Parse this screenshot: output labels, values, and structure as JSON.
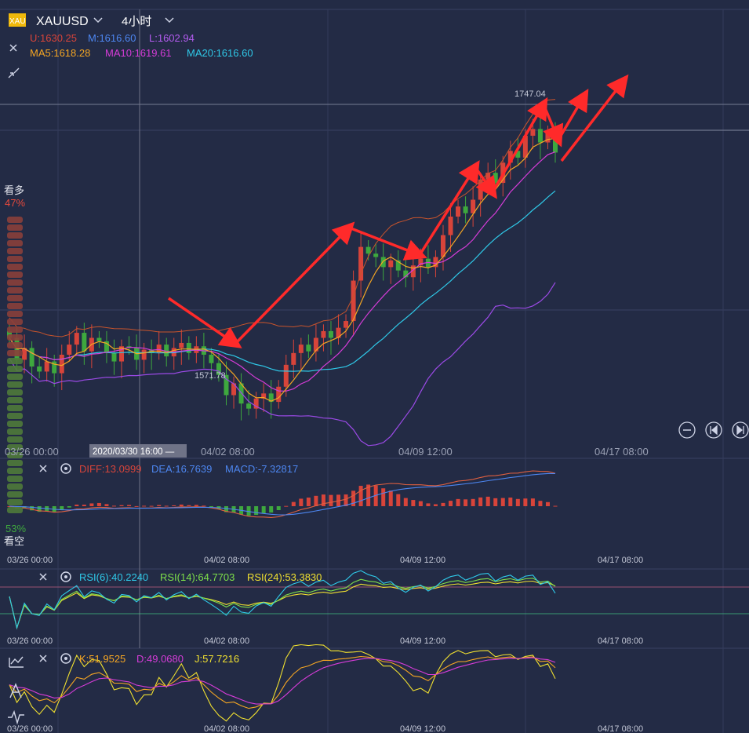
{
  "header": {
    "symbol": "XAUUSD",
    "logo_text": "XAU",
    "period": "4小时",
    "boll": {
      "u": "U:1630.25",
      "m": "M:1616.60",
      "l": "L:1602.94"
    },
    "ma": {
      "ma5": "MA5:1618.28",
      "ma10": "MA10:1619.61",
      "ma20": "MA20:1616.60"
    }
  },
  "sentiment": {
    "bull_label": "看多",
    "bull_pct": "47%",
    "bear_pct": "53%",
    "bear_label": "看空",
    "bull_fraction": 0.47
  },
  "cursor": {
    "time_label": "2020/03/30 16:00 —"
  },
  "markers": {
    "high": "1747.04",
    "low": "1571.78"
  },
  "x_axis_labels": [
    "03/26 00:00",
    "04/02 08:00",
    "04/09 12:00",
    "04/17 08:00"
  ],
  "indicators": {
    "macd": {
      "diff": "DIFF:13.0999",
      "dea": "DEA:16.7639",
      "macd": "MACD:-7.32817"
    },
    "rsi": {
      "rsi6": "RSI(6):40.2240",
      "rsi14": "RSI(14):64.7703",
      "rsi24": "RSI(24):53.3830"
    },
    "kdj": {
      "k": "K:51.9525",
      "d": "D:49.0680",
      "j": "J:57.7216"
    }
  },
  "colors": {
    "background": "#232b45",
    "up": "#d8443a",
    "down": "#3ea83e",
    "ma5": "#f5a623",
    "ma10": "#d63cd8",
    "ma20": "#2fc9e8",
    "boll_u": "#c8542c",
    "boll_l": "#9b4ae6",
    "arrow": "#ff2a2a"
  },
  "icons": [
    "close-icon",
    "collapse-icon",
    "settings-icon",
    "zoom-out-icon",
    "step-back-icon",
    "step-forward-icon",
    "chart-type-icon",
    "drawing-icon",
    "indicator-icon"
  ],
  "chart_data": {
    "type": "candlestick",
    "symbol": "XAUUSD",
    "interval": "4小时",
    "price_range": [
      1560,
      1765
    ],
    "high": 1747.04,
    "low": 1571.78,
    "last": {
      "boll_u": 1630.25,
      "boll_m": 1616.6,
      "boll_l": 1602.94,
      "ma5": 1618.28,
      "ma10": 1619.61,
      "ma20": 1616.6
    },
    "closes": [
      1618,
      1605,
      1612,
      1601,
      1598,
      1604,
      1597,
      1608,
      1614,
      1621,
      1610,
      1618,
      1616,
      1609,
      1604,
      1613,
      1612,
      1605,
      1611,
      1609,
      1614,
      1607,
      1612,
      1615,
      1609,
      1613,
      1608,
      1603,
      1596,
      1584,
      1591,
      1579,
      1576,
      1582,
      1585,
      1580,
      1589,
      1602,
      1609,
      1614,
      1610,
      1618,
      1622,
      1618,
      1624,
      1628,
      1652,
      1672,
      1668,
      1666,
      1660,
      1664,
      1658,
      1654,
      1661,
      1665,
      1660,
      1666,
      1679,
      1690,
      1696,
      1692,
      1700,
      1712,
      1716,
      1710,
      1722,
      1729,
      1725,
      1738,
      1742,
      1734,
      1740,
      1728
    ],
    "indicator_values": {
      "diff": 13.0999,
      "dea": 16.7639,
      "macd": -7.32817,
      "rsi6": 40.224,
      "rsi14": 64.7703,
      "rsi24": 53.383,
      "k": 51.9525,
      "d": 49.068,
      "j": 57.7216
    }
  }
}
